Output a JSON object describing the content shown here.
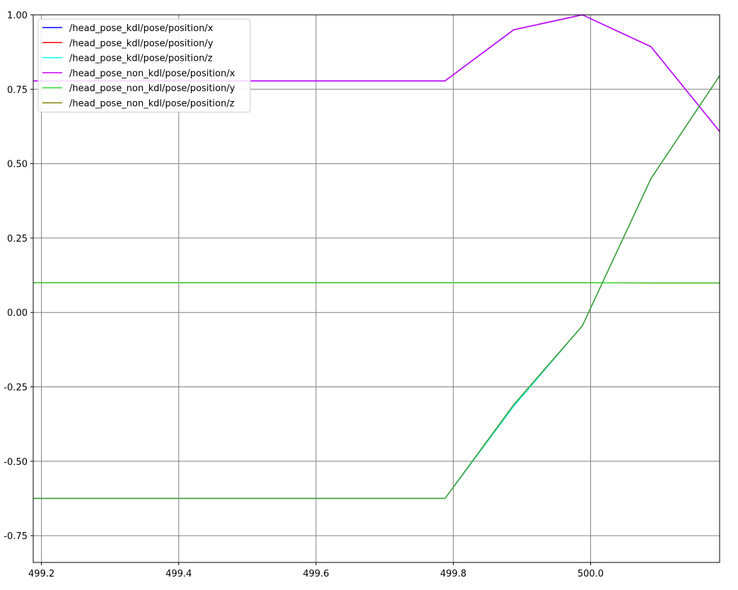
{
  "chart_data": {
    "type": "line",
    "title": "",
    "xlabel": "",
    "ylabel": "",
    "xlim": [
      499.188,
      500.188
    ],
    "ylim": [
      -0.84,
      1.0
    ],
    "grid": true,
    "legend_position": "top-left",
    "x_ticks": [
      499.2,
      499.4,
      499.6,
      499.8,
      500.0
    ],
    "x_tick_labels": [
      "499.2",
      "499.4",
      "499.6",
      "499.8",
      "500.0"
    ],
    "y_ticks": [
      -0.75,
      -0.5,
      -0.25,
      0.0,
      0.25,
      0.5,
      0.75,
      1.0
    ],
    "y_tick_labels": [
      "-0.75",
      "-0.50",
      "-0.25",
      "0.00",
      "0.25",
      "0.50",
      "0.75",
      "1.00"
    ],
    "series": [
      {
        "name": "/head_pose_kdl/pose/position/x",
        "color": "#0000ff",
        "x": [
          499.188,
          499.788,
          499.888,
          499.988,
          500.088,
          500.188
        ],
        "y": [
          0.778,
          0.778,
          0.95,
          1.0,
          0.893,
          0.608
        ]
      },
      {
        "name": "/head_pose_kdl/pose/position/y",
        "color": "#ff0000",
        "x": [
          499.188,
          499.788,
          499.888,
          499.988,
          500.088,
          500.188
        ],
        "y": [
          0.1,
          0.1,
          0.1,
          0.1,
          0.099,
          0.099
        ]
      },
      {
        "name": "/head_pose_kdl/pose/position/z",
        "color": "#00ffff",
        "x": [
          499.188,
          499.788,
          499.888,
          499.988,
          500.088,
          500.188
        ],
        "y": [
          -0.625,
          -0.625,
          -0.315,
          -0.045,
          0.45,
          0.795
        ]
      },
      {
        "name": "/head_pose_non_kdl/pose/position/x",
        "color": "#cc00ff",
        "x": [
          499.188,
          499.788,
          499.888,
          499.988,
          500.088,
          500.188
        ],
        "y": [
          0.778,
          0.778,
          0.95,
          1.0,
          0.893,
          0.608
        ]
      },
      {
        "name": "/head_pose_non_kdl/pose/position/y",
        "color": "#33dd33",
        "x": [
          499.188,
          499.788,
          499.888,
          499.988,
          500.088,
          500.188
        ],
        "y": [
          0.1,
          0.1,
          0.1,
          0.1,
          0.099,
          0.099
        ]
      },
      {
        "name": "/head_pose_non_kdl/pose/position/z",
        "color": "#808000",
        "x": [
          499.188,
          499.788,
          499.888,
          499.988,
          500.088,
          500.188
        ],
        "y": [
          -0.625,
          -0.625,
          -0.31,
          -0.045,
          0.45,
          0.795
        ]
      }
    ],
    "overlay_series": [
      {
        "ref": "/head_pose_non_kdl/pose/position/z",
        "color": "#3fa33f",
        "x": [
          499.188,
          499.788,
          499.888,
          499.988,
          500.088,
          500.188
        ],
        "y": [
          -0.625,
          -0.625,
          -0.31,
          -0.045,
          0.45,
          0.795
        ]
      }
    ]
  }
}
